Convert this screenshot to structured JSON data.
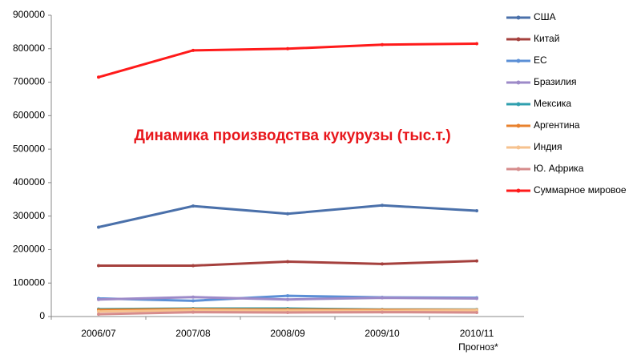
{
  "chart_data": {
    "type": "line",
    "title": "Динамика производства кукурузы (тыс.т.)",
    "categories": [
      "2006/07",
      "2007/08",
      "2008/09",
      "2009/10",
      "2010/11"
    ],
    "annotation": "Прогноз*",
    "ylim": [
      0,
      900000
    ],
    "yticks": [
      0,
      100000,
      200000,
      300000,
      400000,
      500000,
      600000,
      700000,
      800000,
      900000
    ],
    "grid": false,
    "legend": "right",
    "series": [
      {
        "name": "США",
        "color": "#4a70aa",
        "values": [
          267000,
          330000,
          307000,
          332000,
          316000
        ]
      },
      {
        "name": "Китай",
        "color": "#a5403d",
        "values": [
          152000,
          152000,
          164000,
          157000,
          166000
        ]
      },
      {
        "name": "ЕС",
        "color": "#5b8fd6",
        "values": [
          54000,
          47000,
          62000,
          57000,
          56000
        ]
      },
      {
        "name": "Бразилия",
        "color": "#9d8ac8",
        "values": [
          51000,
          58000,
          51000,
          56000,
          54000
        ]
      },
      {
        "name": "Мексика",
        "color": "#2f9fae",
        "values": [
          22000,
          24000,
          24000,
          21000,
          21000
        ]
      },
      {
        "name": "Аргентина",
        "color": "#e8812d",
        "values": [
          20000,
          22000,
          21000,
          20000,
          20000
        ]
      },
      {
        "name": "Индия",
        "color": "#f6c28e",
        "values": [
          15000,
          19000,
          18000,
          17000,
          19000
        ]
      },
      {
        "name": "Ю. Африка",
        "color": "#d68c8c",
        "values": [
          7000,
          13000,
          12000,
          13000,
          12000
        ]
      },
      {
        "name": "Суммарное мировое",
        "color": "#ff1a1a",
        "values": [
          715000,
          795000,
          800000,
          812000,
          815000
        ]
      }
    ]
  }
}
